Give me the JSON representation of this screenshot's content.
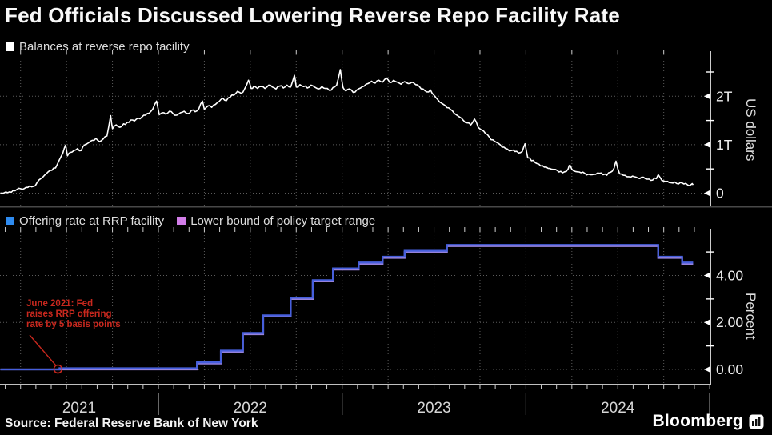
{
  "title": "Fed Officials Discussed Lowering Reverse Repo Facility Rate",
  "source": "Source: Federal Reserve Bank of New York",
  "brand": {
    "name": "Bloomberg",
    "logo_icon": "bar-chart-tile-icon"
  },
  "colors": {
    "background": "#000000",
    "balances_line": "#ffffff",
    "offering_rate_line": "#465fdc",
    "offering_rate_swatch": "#2e8bf0",
    "lower_bound_line": "#9682dc",
    "lower_bound_swatch": "#d27de8",
    "annotation_red": "#c9281e",
    "grid": "#5c5c5c",
    "axis": "#ffffff",
    "panel_separator": "#484848"
  },
  "legends": {
    "balances": [
      {
        "label": "Balances at reverse repo facility",
        "color": "#ffffff"
      }
    ],
    "rates": [
      {
        "label": "Offering rate at RRP facility",
        "color": "#2e8bf0"
      },
      {
        "label": "Lower bound of policy target range",
        "color": "#d27de8"
      }
    ]
  },
  "annotation": {
    "text": "June 2021: Fed\nraises RRP offering\nrate by 5 basis points",
    "color": "#c9281e",
    "points_to": {
      "x_year": 2021.462,
      "value": 0.05
    }
  },
  "x_axis": {
    "year_labels": [
      "2021",
      "2022",
      "2023",
      "2024"
    ],
    "year_boundaries": [
      2021,
      2022,
      2023,
      2024,
      2025
    ],
    "visible_range": [
      2021.138,
      2024.915
    ]
  },
  "chart_data": [
    {
      "type": "line",
      "name": "Balances at reverse repo facility",
      "ylabel": "US dollars",
      "unit": "trillions of US dollars",
      "ylim": [
        0,
        3.15
      ],
      "grid": true,
      "yticks": [
        {
          "v": 0,
          "label": "0"
        },
        {
          "v": 1,
          "label": "1T"
        },
        {
          "v": 2,
          "label": "2T"
        }
      ],
      "yticks_minor": [
        0.5,
        1.5,
        2.5
      ],
      "points": [
        [
          2021.14,
          0.004
        ],
        [
          2021.16,
          0.006
        ],
        [
          2021.18,
          0.01
        ],
        [
          2021.2,
          0.02
        ],
        [
          2021.22,
          0.05
        ],
        [
          2021.24,
          0.1
        ],
        [
          2021.26,
          0.08
        ],
        [
          2021.28,
          0.12
        ],
        [
          2021.3,
          0.15
        ],
        [
          2021.32,
          0.14
        ],
        [
          2021.34,
          0.22
        ],
        [
          2021.36,
          0.3
        ],
        [
          2021.38,
          0.37
        ],
        [
          2021.4,
          0.44
        ],
        [
          2021.42,
          0.47
        ],
        [
          2021.44,
          0.52
        ],
        [
          2021.46,
          0.68
        ],
        [
          2021.48,
          0.83
        ],
        [
          2021.495,
          0.99
        ],
        [
          2021.505,
          0.77
        ],
        [
          2021.52,
          0.84
        ],
        [
          2021.54,
          0.88
        ],
        [
          2021.56,
          0.92
        ],
        [
          2021.58,
          0.88
        ],
        [
          2021.6,
          1.0
        ],
        [
          2021.62,
          1.04
        ],
        [
          2021.64,
          1.09
        ],
        [
          2021.66,
          1.13
        ],
        [
          2021.68,
          1.06
        ],
        [
          2021.7,
          1.12
        ],
        [
          2021.72,
          1.18
        ],
        [
          2021.74,
          1.6
        ],
        [
          2021.75,
          1.33
        ],
        [
          2021.77,
          1.41
        ],
        [
          2021.79,
          1.36
        ],
        [
          2021.81,
          1.43
        ],
        [
          2021.83,
          1.46
        ],
        [
          2021.85,
          1.51
        ],
        [
          2021.87,
          1.49
        ],
        [
          2021.89,
          1.55
        ],
        [
          2021.91,
          1.57
        ],
        [
          2021.93,
          1.61
        ],
        [
          2021.95,
          1.65
        ],
        [
          2021.97,
          1.74
        ],
        [
          2021.99,
          1.9
        ],
        [
          2022.005,
          1.62
        ],
        [
          2022.02,
          1.66
        ],
        [
          2022.04,
          1.63
        ],
        [
          2022.06,
          1.69
        ],
        [
          2022.08,
          1.64
        ],
        [
          2022.1,
          1.61
        ],
        [
          2022.12,
          1.66
        ],
        [
          2022.14,
          1.69
        ],
        [
          2022.16,
          1.64
        ],
        [
          2022.18,
          1.71
        ],
        [
          2022.2,
          1.68
        ],
        [
          2022.22,
          1.74
        ],
        [
          2022.24,
          1.9
        ],
        [
          2022.25,
          1.73
        ],
        [
          2022.27,
          1.8
        ],
        [
          2022.29,
          1.77
        ],
        [
          2022.31,
          1.83
        ],
        [
          2022.33,
          1.89
        ],
        [
          2022.35,
          1.96
        ],
        [
          2022.37,
          1.91
        ],
        [
          2022.39,
          1.98
        ],
        [
          2022.41,
          2.02
        ],
        [
          2022.43,
          2.1
        ],
        [
          2022.45,
          2.06
        ],
        [
          2022.47,
          2.16
        ],
        [
          2022.49,
          2.33
        ],
        [
          2022.505,
          2.16
        ],
        [
          2022.52,
          2.21
        ],
        [
          2022.54,
          2.16
        ],
        [
          2022.56,
          2.2
        ],
        [
          2022.58,
          2.16
        ],
        [
          2022.6,
          2.23
        ],
        [
          2022.62,
          2.19
        ],
        [
          2022.64,
          2.15
        ],
        [
          2022.66,
          2.21
        ],
        [
          2022.68,
          2.17
        ],
        [
          2022.7,
          2.23
        ],
        [
          2022.72,
          2.19
        ],
        [
          2022.74,
          2.43
        ],
        [
          2022.75,
          2.19
        ],
        [
          2022.77,
          2.24
        ],
        [
          2022.79,
          2.2
        ],
        [
          2022.81,
          2.17
        ],
        [
          2022.83,
          2.23
        ],
        [
          2022.85,
          2.19
        ],
        [
          2022.87,
          2.15
        ],
        [
          2022.89,
          2.2
        ],
        [
          2022.91,
          2.16
        ],
        [
          2022.93,
          2.12
        ],
        [
          2022.95,
          2.18
        ],
        [
          2022.97,
          2.23
        ],
        [
          2022.99,
          2.55
        ],
        [
          2023.005,
          2.18
        ],
        [
          2023.02,
          2.11
        ],
        [
          2023.04,
          2.15
        ],
        [
          2023.06,
          2.08
        ],
        [
          2023.08,
          2.13
        ],
        [
          2023.1,
          2.17
        ],
        [
          2023.12,
          2.21
        ],
        [
          2023.14,
          2.26
        ],
        [
          2023.16,
          2.31
        ],
        [
          2023.18,
          2.27
        ],
        [
          2023.2,
          2.33
        ],
        [
          2023.22,
          2.29
        ],
        [
          2023.24,
          2.38
        ],
        [
          2023.26,
          2.28
        ],
        [
          2023.28,
          2.33
        ],
        [
          2023.3,
          2.29
        ],
        [
          2023.32,
          2.25
        ],
        [
          2023.34,
          2.3
        ],
        [
          2023.36,
          2.26
        ],
        [
          2023.38,
          2.29
        ],
        [
          2023.4,
          2.24
        ],
        [
          2023.42,
          2.2
        ],
        [
          2023.44,
          2.15
        ],
        [
          2023.46,
          2.09
        ],
        [
          2023.48,
          2.13
        ],
        [
          2023.5,
          2.02
        ],
        [
          2023.52,
          1.93
        ],
        [
          2023.54,
          1.86
        ],
        [
          2023.56,
          1.81
        ],
        [
          2023.58,
          1.76
        ],
        [
          2023.6,
          1.7
        ],
        [
          2023.62,
          1.62
        ],
        [
          2023.64,
          1.57
        ],
        [
          2023.66,
          1.5
        ],
        [
          2023.68,
          1.45
        ],
        [
          2023.7,
          1.41
        ],
        [
          2023.72,
          1.53
        ],
        [
          2023.74,
          1.36
        ],
        [
          2023.76,
          1.3
        ],
        [
          2023.78,
          1.23
        ],
        [
          2023.8,
          1.16
        ],
        [
          2023.82,
          1.1
        ],
        [
          2023.84,
          1.05
        ],
        [
          2023.86,
          1.0
        ],
        [
          2023.88,
          0.95
        ],
        [
          2023.9,
          0.91
        ],
        [
          2023.92,
          0.88
        ],
        [
          2023.94,
          0.86
        ],
        [
          2023.96,
          0.83
        ],
        [
          2023.98,
          0.86
        ],
        [
          2023.995,
          1.02
        ],
        [
          2024.01,
          0.73
        ],
        [
          2024.03,
          0.67
        ],
        [
          2024.05,
          0.63
        ],
        [
          2024.07,
          0.6
        ],
        [
          2024.09,
          0.57
        ],
        [
          2024.11,
          0.54
        ],
        [
          2024.13,
          0.51
        ],
        [
          2024.15,
          0.49
        ],
        [
          2024.17,
          0.47
        ],
        [
          2024.19,
          0.45
        ],
        [
          2024.21,
          0.44
        ],
        [
          2024.23,
          0.5
        ],
        [
          2024.24,
          0.58
        ],
        [
          2024.26,
          0.46
        ],
        [
          2024.28,
          0.44
        ],
        [
          2024.3,
          0.42
        ],
        [
          2024.32,
          0.41
        ],
        [
          2024.34,
          0.39
        ],
        [
          2024.36,
          0.38
        ],
        [
          2024.38,
          0.39
        ],
        [
          2024.4,
          0.41
        ],
        [
          2024.42,
          0.38
        ],
        [
          2024.44,
          0.37
        ],
        [
          2024.46,
          0.43
        ],
        [
          2024.48,
          0.52
        ],
        [
          2024.49,
          0.66
        ],
        [
          2024.51,
          0.4
        ],
        [
          2024.53,
          0.37
        ],
        [
          2024.55,
          0.34
        ],
        [
          2024.57,
          0.33
        ],
        [
          2024.59,
          0.34
        ],
        [
          2024.61,
          0.31
        ],
        [
          2024.63,
          0.33
        ],
        [
          2024.65,
          0.3
        ],
        [
          2024.67,
          0.29
        ],
        [
          2024.69,
          0.27
        ],
        [
          2024.71,
          0.3
        ],
        [
          2024.72,
          0.38
        ],
        [
          2024.74,
          0.26
        ],
        [
          2024.76,
          0.24
        ],
        [
          2024.78,
          0.22
        ],
        [
          2024.8,
          0.21
        ],
        [
          2024.82,
          0.2
        ],
        [
          2024.84,
          0.22
        ],
        [
          2024.86,
          0.19
        ],
        [
          2024.88,
          0.17
        ],
        [
          2024.9,
          0.18
        ],
        [
          2024.91,
          0.17
        ]
      ]
    },
    {
      "type": "line",
      "name": "RRP rates",
      "step": true,
      "ylabel": "Percent",
      "ylim": [
        -0.63,
        5.87
      ],
      "grid": true,
      "yticks": [
        {
          "v": 0,
          "label": "0.00"
        },
        {
          "v": 2,
          "label": "2.00"
        },
        {
          "v": 4,
          "label": "4.00"
        }
      ],
      "yticks_minor": [
        1,
        3,
        5
      ],
      "series": [
        {
          "name": "Lower bound of policy target range",
          "color": "#9682dc",
          "points": [
            [
              2021.14,
              0.0
            ],
            [
              2022.21,
              0.25
            ],
            [
              2022.34,
              0.75
            ],
            [
              2022.46,
              1.5
            ],
            [
              2022.57,
              2.25
            ],
            [
              2022.72,
              3.0
            ],
            [
              2022.84,
              3.75
            ],
            [
              2022.95,
              4.25
            ],
            [
              2023.09,
              4.5
            ],
            [
              2023.22,
              4.75
            ],
            [
              2023.34,
              5.0
            ],
            [
              2023.57,
              5.25
            ],
            [
              2024.72,
              4.75
            ],
            [
              2024.85,
              4.5
            ],
            [
              2024.91,
              4.5
            ]
          ]
        },
        {
          "name": "Offering rate at RRP facility",
          "color": "#465fdc",
          "points": [
            [
              2021.14,
              0.0
            ],
            [
              2021.462,
              0.05
            ],
            [
              2022.21,
              0.3
            ],
            [
              2022.34,
              0.8
            ],
            [
              2022.46,
              1.55
            ],
            [
              2022.57,
              2.3
            ],
            [
              2022.72,
              3.05
            ],
            [
              2022.84,
              3.8
            ],
            [
              2022.95,
              4.3
            ],
            [
              2023.09,
              4.55
            ],
            [
              2023.22,
              4.8
            ],
            [
              2023.34,
              5.05
            ],
            [
              2023.57,
              5.3
            ],
            [
              2024.72,
              4.8
            ],
            [
              2024.85,
              4.55
            ],
            [
              2024.91,
              4.55
            ]
          ]
        }
      ]
    }
  ],
  "axis_titles": {
    "balances": "US dollars",
    "rates": "Percent"
  }
}
